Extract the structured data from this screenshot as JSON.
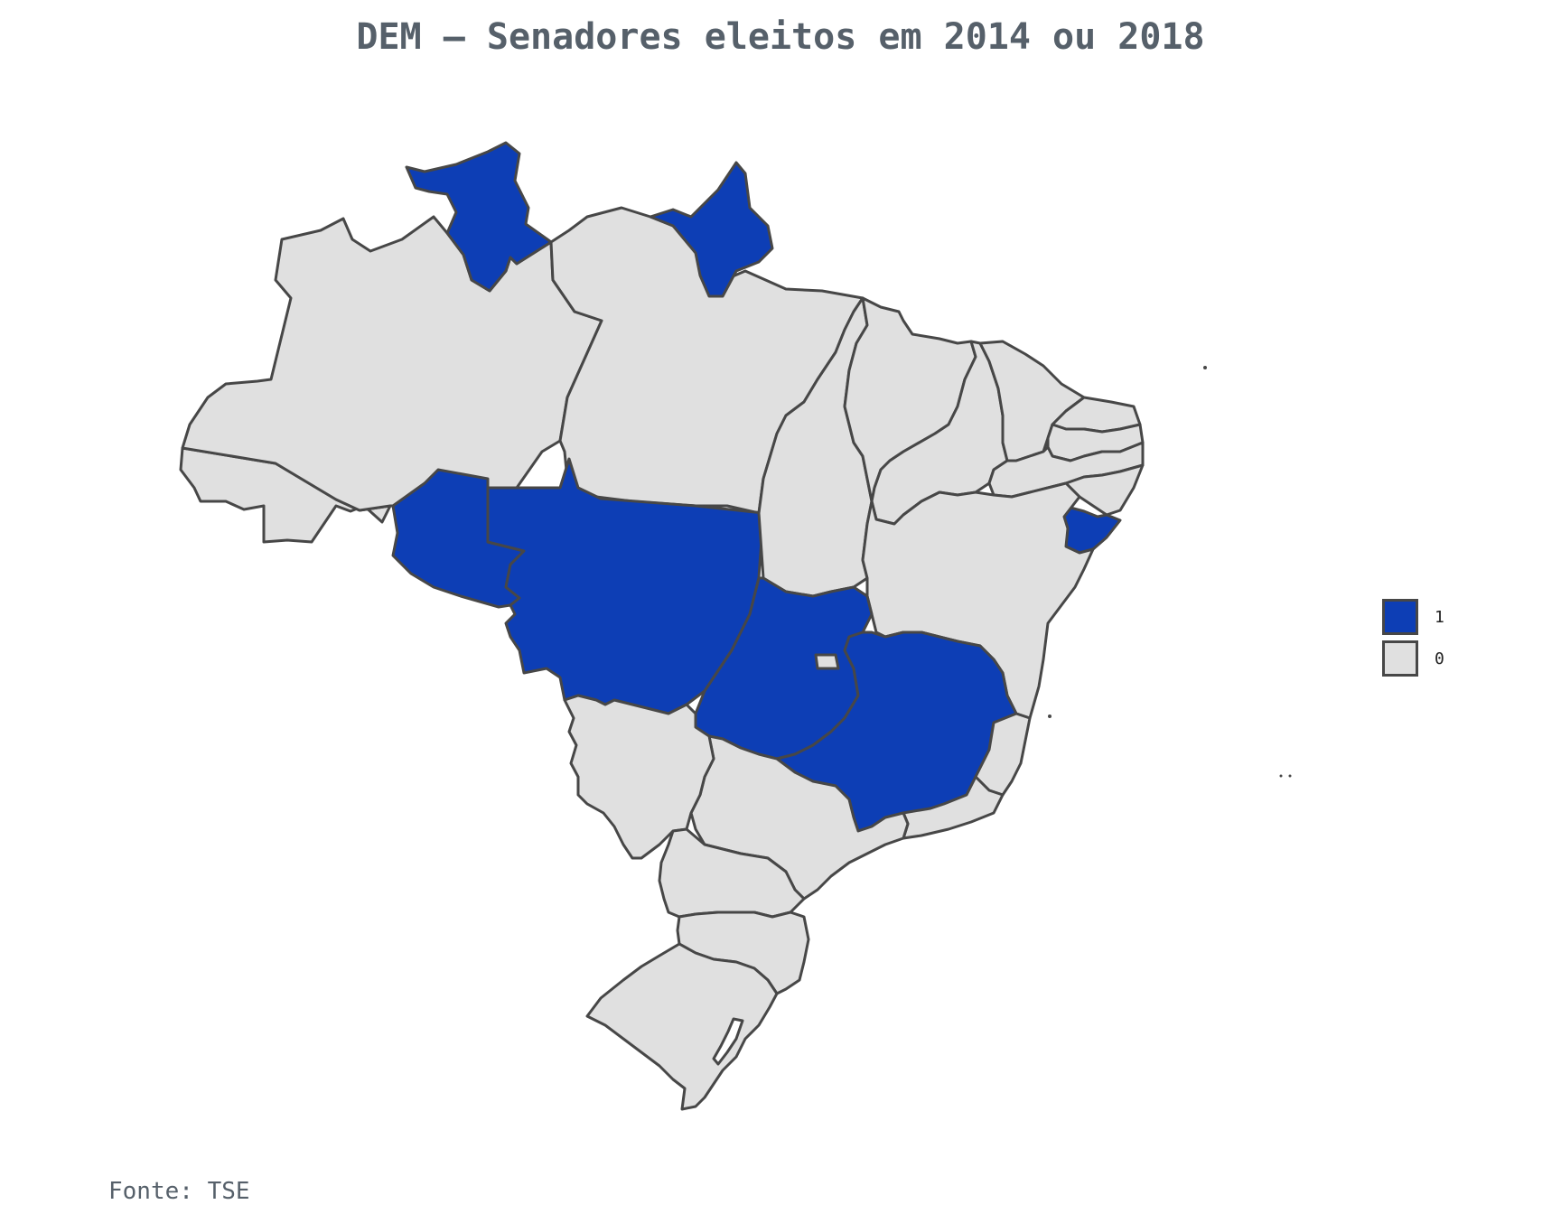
{
  "title": "DEM – Senadores eleitos em 2014 ou 2018",
  "source": "Fonte: TSE",
  "colors": {
    "elected": "#0d3eb5",
    "not_elected": "#e0e0e0",
    "border": "#474747",
    "text": "#56606a"
  },
  "legend": [
    {
      "label": "1",
      "category": "elected"
    },
    {
      "label": "0",
      "category": "not_elected"
    }
  ],
  "chart_data": {
    "type": "choropleth",
    "categories": [
      "1",
      "0"
    ],
    "states": [
      {
        "id": "AC",
        "value": 0
      },
      {
        "id": "AM",
        "value": 0
      },
      {
        "id": "RR",
        "value": 1
      },
      {
        "id": "PA",
        "value": 0
      },
      {
        "id": "AP",
        "value": 1
      },
      {
        "id": "RO",
        "value": 1
      },
      {
        "id": "MT",
        "value": 1
      },
      {
        "id": "TO",
        "value": 0
      },
      {
        "id": "MA",
        "value": 0
      },
      {
        "id": "PI",
        "value": 0
      },
      {
        "id": "CE",
        "value": 0
      },
      {
        "id": "RN",
        "value": 0
      },
      {
        "id": "PB",
        "value": 0
      },
      {
        "id": "PE",
        "value": 0
      },
      {
        "id": "AL",
        "value": 0
      },
      {
        "id": "SE",
        "value": 1
      },
      {
        "id": "BA",
        "value": 0
      },
      {
        "id": "GO",
        "value": 1
      },
      {
        "id": "DF",
        "value": 0
      },
      {
        "id": "MS",
        "value": 0
      },
      {
        "id": "MG",
        "value": 1
      },
      {
        "id": "ES",
        "value": 0
      },
      {
        "id": "RJ",
        "value": 0
      },
      {
        "id": "SP",
        "value": 0
      },
      {
        "id": "PR",
        "value": 0
      },
      {
        "id": "SC",
        "value": 0
      },
      {
        "id": "RS",
        "value": 0
      }
    ]
  }
}
